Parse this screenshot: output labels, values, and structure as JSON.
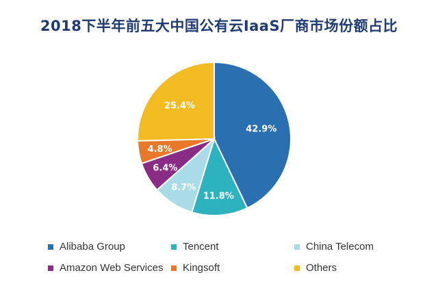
{
  "chart_data": {
    "type": "pie",
    "title": "2018下半年前五大中国公有云IaaS厂商市场份额占比",
    "slices": [
      {
        "name": "Alibaba Group",
        "value": 42.9,
        "label": "42.9%",
        "color": "#2a6fb0"
      },
      {
        "name": "Tencent",
        "value": 11.8,
        "label": "11.8%",
        "color": "#2db3c0"
      },
      {
        "name": "China Telecom",
        "value": 8.7,
        "label": "8.7%",
        "color": "#a9dbe8"
      },
      {
        "name": "Amazon Web Services",
        "value": 6.4,
        "label": "6.4%",
        "color": "#8a2c86"
      },
      {
        "name": "Kingsoft",
        "value": 4.8,
        "label": "4.8%",
        "color": "#e8792b"
      },
      {
        "name": "Others",
        "value": 25.4,
        "label": "25.4%",
        "color": "#f2bb22"
      }
    ],
    "legend_position": "bottom"
  }
}
